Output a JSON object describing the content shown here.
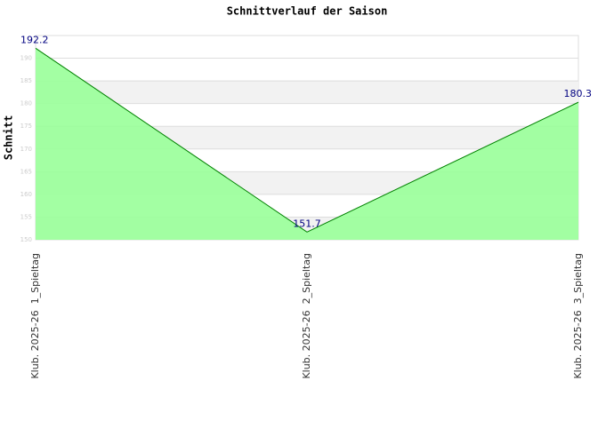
{
  "chart_data": {
    "type": "area",
    "title": "Schnittverlauf der Saison",
    "y_label": "Schnitt",
    "categories": [
      "Klub. 2025-26  1_Spieltag",
      "Klub. 2025-26  2_Spieltag",
      "Klub. 2025-26  3_Spieltag"
    ],
    "series": [
      {
        "name": "Schnitt",
        "color": "#008000",
        "fill": "#99ff99",
        "values": [
          192.2,
          151.7,
          180.3
        ]
      }
    ],
    "ylim": [
      150,
      195
    ],
    "yticks": [
      150,
      155,
      160,
      165,
      170,
      175,
      180,
      185,
      190
    ],
    "grid": true
  }
}
